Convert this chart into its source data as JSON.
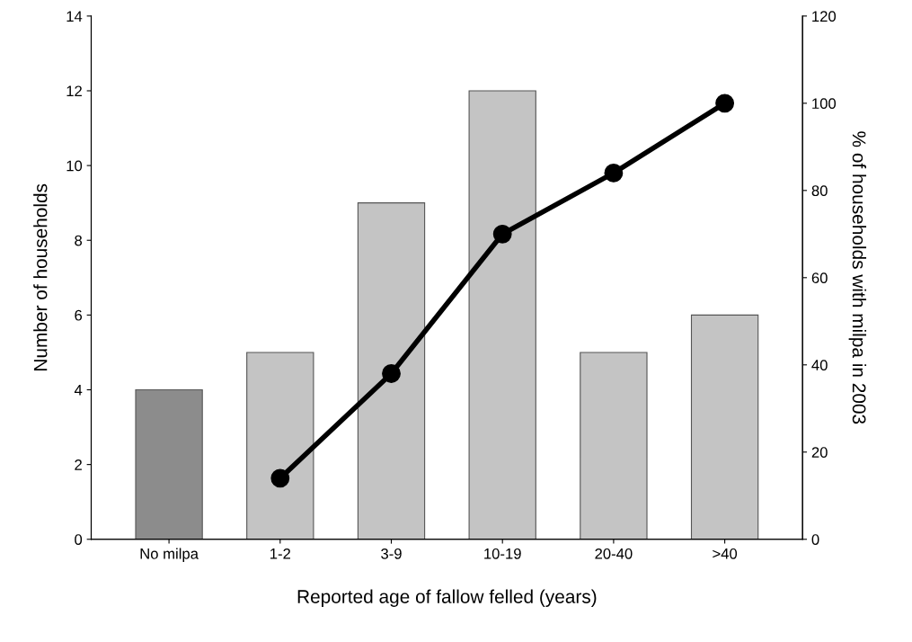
{
  "chart_data": {
    "type": "bar",
    "xlabel": "Reported age of fallow felled (years)",
    "ylabel": "Number of households",
    "y2label": "% of households with milpa in 2003",
    "categories": [
      "No milpa",
      "1-2",
      "3-9",
      "10-19",
      "20-40",
      ">40"
    ],
    "series": [
      {
        "colors": [
          "#8c8c8c",
          "#c4c4c4",
          "#c4c4c4",
          "#c4c4c4",
          "#c4c4c4",
          "#c4c4c4"
        ],
        "values": [
          4,
          5,
          9,
          12,
          5,
          6
        ]
      },
      {
        "type": "line",
        "axis": "y2",
        "color": "#000000",
        "marker": "circle",
        "values": [
          null,
          14,
          38,
          70,
          84,
          100
        ]
      }
    ],
    "ylim": [
      0,
      14
    ],
    "yticks": [
      0,
      2,
      4,
      6,
      8,
      10,
      12,
      14
    ],
    "y2lim": [
      0,
      120
    ],
    "y2ticks": [
      0,
      20,
      40,
      60,
      80,
      100,
      120
    ],
    "grid": false,
    "legend": false
  }
}
